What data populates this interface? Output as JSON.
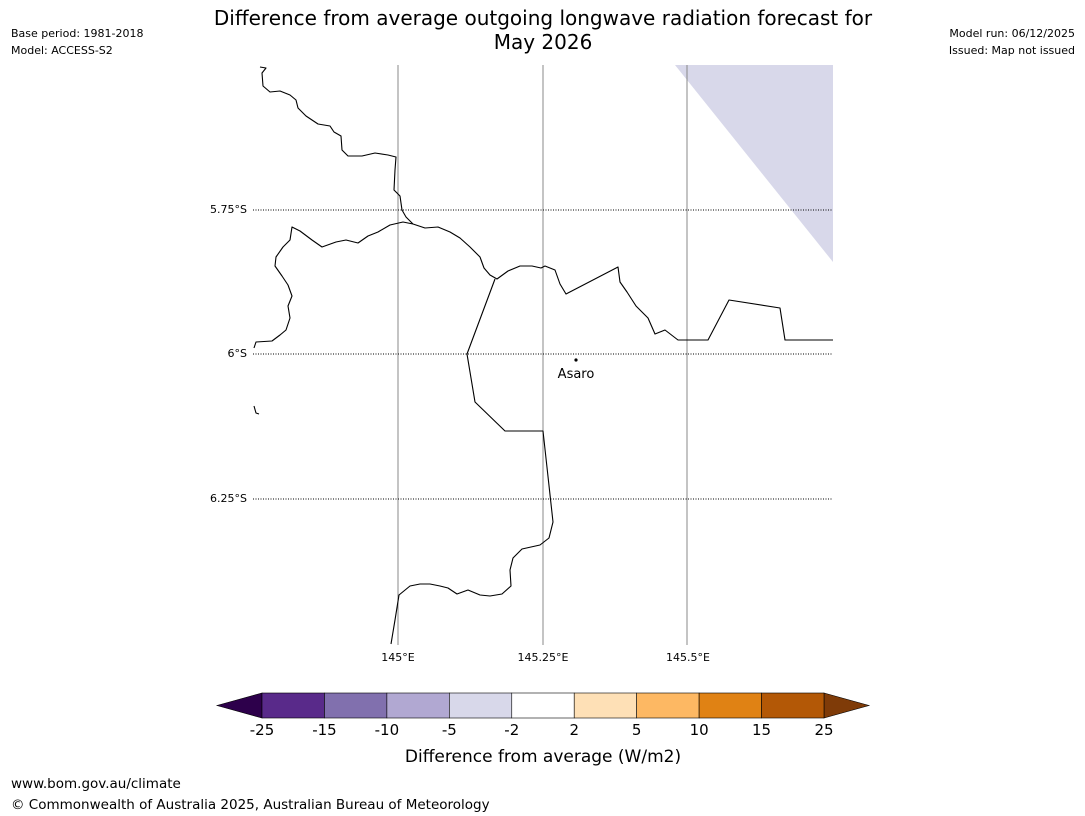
{
  "title_line1": "Difference from average outgoing longwave radiation forecast for",
  "title_line2": "May 2026",
  "meta_left": {
    "base_period": "Base period: 1981-2018",
    "model": "Model: ACCESS-S2"
  },
  "meta_right": {
    "model_run": "Model run: 06/12/2025",
    "issued": "Issued: Map not issued"
  },
  "map": {
    "lat_labels": [
      "5.75°S",
      "6°S",
      "6.25°S"
    ],
    "lon_labels": [
      "145°E",
      "145.25°E",
      "145.5°E"
    ],
    "place_label": "Asaro",
    "anomaly_region_color": "#d8d8ea"
  },
  "colorbar": {
    "ticks": [
      "-25",
      "-15",
      "-10",
      "-5",
      "-2",
      "2",
      "5",
      "10",
      "15",
      "25"
    ],
    "colors": [
      "#592a8a",
      "#8170ae",
      "#b1a8d2",
      "#d8d8ea",
      "#ffffff",
      "#fee0b6",
      "#fdb863",
      "#e08214",
      "#b35806"
    ],
    "low_extend_color": "#2d004b",
    "high_extend_color": "#7f3b08",
    "label": "Difference from average (W/m2)"
  },
  "footer": {
    "url": "www.bom.gov.au/climate",
    "copyright": "© Commonwealth of Australia 2025, Australian Bureau of Meteorology"
  }
}
